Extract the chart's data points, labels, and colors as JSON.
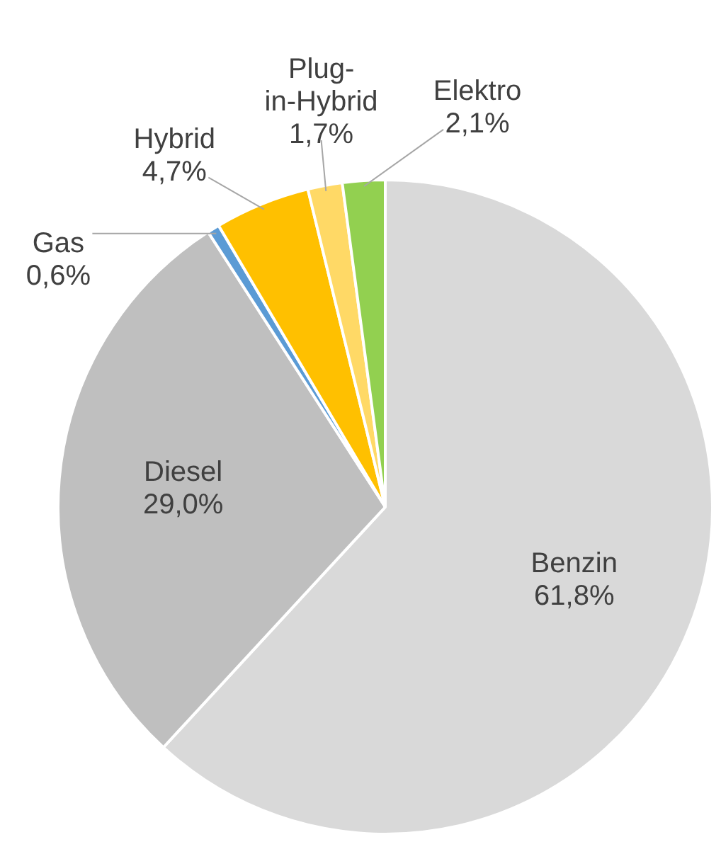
{
  "chart_data": {
    "type": "pie",
    "categories": [
      "Benzin",
      "Diesel",
      "Gas",
      "Hybrid",
      "Plug-in-Hybrid",
      "Elektro"
    ],
    "values": [
      61.8,
      29.0,
      0.6,
      4.7,
      1.7,
      2.1
    ],
    "value_labels": [
      "61,8%",
      "29,0%",
      "0,6%",
      "4,7%",
      "1,7%",
      "2,1%"
    ],
    "colors": [
      "#d9d9d9",
      "#bfbfbf",
      "#5b9bd5",
      "#ffc000",
      "#ffd966",
      "#92d050"
    ],
    "legend": false
  }
}
